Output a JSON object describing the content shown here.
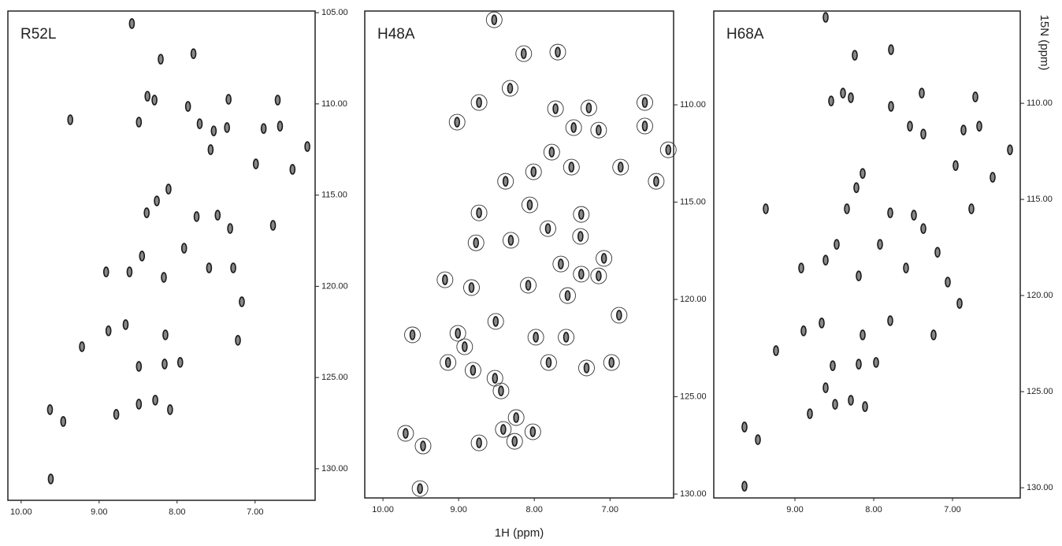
{
  "chart_data": [
    {
      "type": "scatter",
      "title": "R52L",
      "xlim": [
        10.17,
        6.23
      ],
      "ylim": [
        104.91,
        131.73
      ],
      "xticks": [
        {
          "value": 10,
          "label": "10.00"
        },
        {
          "value": 9,
          "label": "9.00"
        },
        {
          "value": 8,
          "label": "8.00"
        },
        {
          "value": 7,
          "label": "7.00"
        }
      ],
      "yticks": [
        {
          "value": 105,
          "label": "105.00"
        },
        {
          "value": 110,
          "label": "110.00"
        },
        {
          "value": 115,
          "label": "115.00"
        },
        {
          "value": 120,
          "label": "120.00"
        },
        {
          "value": 125,
          "label": "125.00"
        },
        {
          "value": 130,
          "label": "130.00"
        }
      ],
      "series": [
        {
          "color": "#1a1a1a",
          "marker": "ellipse",
          "x": [
            8.58,
            8.21,
            7.79,
            8.38,
            8.29,
            8.49,
            7.34,
            6.71,
            7.86,
            7.71,
            7.53,
            7.36,
            6.89,
            6.68,
            6.99,
            6.52,
            6.33,
            7.57,
            8.11,
            8.26,
            8.39,
            7.75,
            7.48,
            7.91,
            7.32,
            8.45,
            8.61,
            8.17,
            7.59,
            7.28,
            8.91,
            7.17,
            8.66,
            8.15,
            8.16,
            7.96,
            7.22,
            8.88,
            9.22,
            8.49,
            8.78,
            8.49,
            8.28,
            8.09,
            9.62,
            9.63,
            9.46,
            6.77,
            9.37
          ],
          "y": [
            105.6,
            107.55,
            107.25,
            109.58,
            109.79,
            111.0,
            109.75,
            109.79,
            110.14,
            111.09,
            111.48,
            111.3,
            111.35,
            111.22,
            113.29,
            113.59,
            112.34,
            112.51,
            114.67,
            115.32,
            115.97,
            116.18,
            116.1,
            117.91,
            116.83,
            118.34,
            119.21,
            119.51,
            118.99,
            118.99,
            119.21,
            120.85,
            122.1,
            122.66,
            124.26,
            124.17,
            122.96,
            122.44,
            123.31,
            124.39,
            127.02,
            126.46,
            126.24,
            126.76,
            130.56,
            126.76,
            127.41,
            116.66,
            110.87
          ]
        }
      ]
    },
    {
      "type": "scatter",
      "title": "H48A",
      "xlabel": "1H (ppm)",
      "xlim": [
        10.24,
        6.16
      ],
      "ylim": [
        105.18,
        130.2
      ],
      "xticks": [
        {
          "value": 10,
          "label": "10.00"
        },
        {
          "value": 9,
          "label": "9.00"
        },
        {
          "value": 8,
          "label": "8.00"
        },
        {
          "value": 7,
          "label": "7.00"
        }
      ],
      "yticks": [
        {
          "value": 110,
          "label": "110.00"
        },
        {
          "value": 115,
          "label": "115.00"
        },
        {
          "value": 120,
          "label": "120.00"
        },
        {
          "value": 125,
          "label": "125.00"
        },
        {
          "value": 130,
          "label": "130.00"
        }
      ],
      "series": [
        {
          "color": "#1a1a1a",
          "marker": "circled",
          "x": [
            8.53,
            8.14,
            7.69,
            8.32,
            8.73,
            9.02,
            7.72,
            7.28,
            6.54,
            7.48,
            7.15,
            6.54,
            6.23,
            6.39,
            6.86,
            7.77,
            7.51,
            8.01,
            8.38,
            8.73,
            8.06,
            7.38,
            8.77,
            8.31,
            7.82,
            7.39,
            7.08,
            9.18,
            8.83,
            7.65,
            7.38,
            7.15,
            8.08,
            7.56,
            8.51,
            7.98,
            7.58,
            6.88,
            9.61,
            9.01,
            8.92,
            9.14,
            8.81,
            8.52,
            8.44,
            7.81,
            7.31,
            6.98,
            9.7,
            9.47,
            9.51,
            8.73,
            8.41,
            8.24,
            8.26,
            8.02
          ],
          "y": [
            105.63,
            107.37,
            107.29,
            109.15,
            109.88,
            110.89,
            110.2,
            110.16,
            109.88,
            111.17,
            111.3,
            111.09,
            112.31,
            113.93,
            113.2,
            112.43,
            113.2,
            113.44,
            113.93,
            115.55,
            115.14,
            115.63,
            117.09,
            116.96,
            116.36,
            116.76,
            117.89,
            118.99,
            119.39,
            118.18,
            118.7,
            118.79,
            119.27,
            119.8,
            121.13,
            121.94,
            121.94,
            120.81,
            121.82,
            121.74,
            122.43,
            123.24,
            123.64,
            124.05,
            124.7,
            123.24,
            123.52,
            123.24,
            126.88,
            127.53,
            129.72,
            127.37,
            126.68,
            126.07,
            127.29,
            126.8
          ]
        }
      ]
    },
    {
      "type": "scatter",
      "title": "H68A",
      "ylabel": "15N (ppm)",
      "xlim": [
        10.03,
        6.14
      ],
      "ylim": [
        105.2,
        130.53
      ],
      "xticks": [
        {
          "value": 9,
          "label": "9.00"
        },
        {
          "value": 8,
          "label": "8.00"
        },
        {
          "value": 7,
          "label": "7.00"
        }
      ],
      "yticks": [
        {
          "value": 110,
          "label": "110.00"
        },
        {
          "value": 115,
          "label": "115.00"
        },
        {
          "value": 120,
          "label": "120.00"
        },
        {
          "value": 125,
          "label": "125.00"
        },
        {
          "value": 130,
          "label": "130.00"
        }
      ],
      "series": [
        {
          "color": "#1a1a1a",
          "marker": "ellipse",
          "x": [
            8.61,
            8.24,
            7.78,
            8.39,
            8.29,
            8.54,
            7.39,
            6.71,
            7.78,
            7.54,
            7.37,
            6.86,
            6.66,
            6.27,
            6.96,
            6.49,
            8.14,
            8.22,
            8.34,
            7.79,
            7.49,
            7.92,
            7.37,
            8.47,
            8.61,
            8.19,
            7.59,
            7.19,
            8.92,
            7.06,
            8.66,
            8.14,
            8.19,
            7.97,
            7.24,
            8.89,
            9.24,
            8.52,
            8.61,
            8.81,
            8.49,
            8.29,
            8.11,
            9.64,
            9.47,
            9.64,
            6.91,
            7.79,
            6.76,
            9.37
          ],
          "y": [
            105.53,
            107.5,
            107.21,
            109.47,
            109.71,
            109.88,
            109.47,
            109.67,
            110.16,
            111.19,
            111.6,
            111.39,
            111.19,
            112.42,
            113.24,
            113.85,
            113.65,
            114.39,
            115.49,
            115.7,
            115.82,
            117.34,
            116.52,
            117.34,
            118.16,
            118.98,
            118.57,
            117.75,
            118.57,
            119.3,
            121.43,
            122.05,
            123.57,
            123.48,
            122.05,
            121.84,
            122.87,
            123.65,
            124.8,
            126.15,
            125.66,
            125.45,
            125.78,
            126.84,
            127.5,
            129.92,
            120.41,
            121.31,
            115.49,
            115.49
          ]
        }
      ]
    }
  ]
}
